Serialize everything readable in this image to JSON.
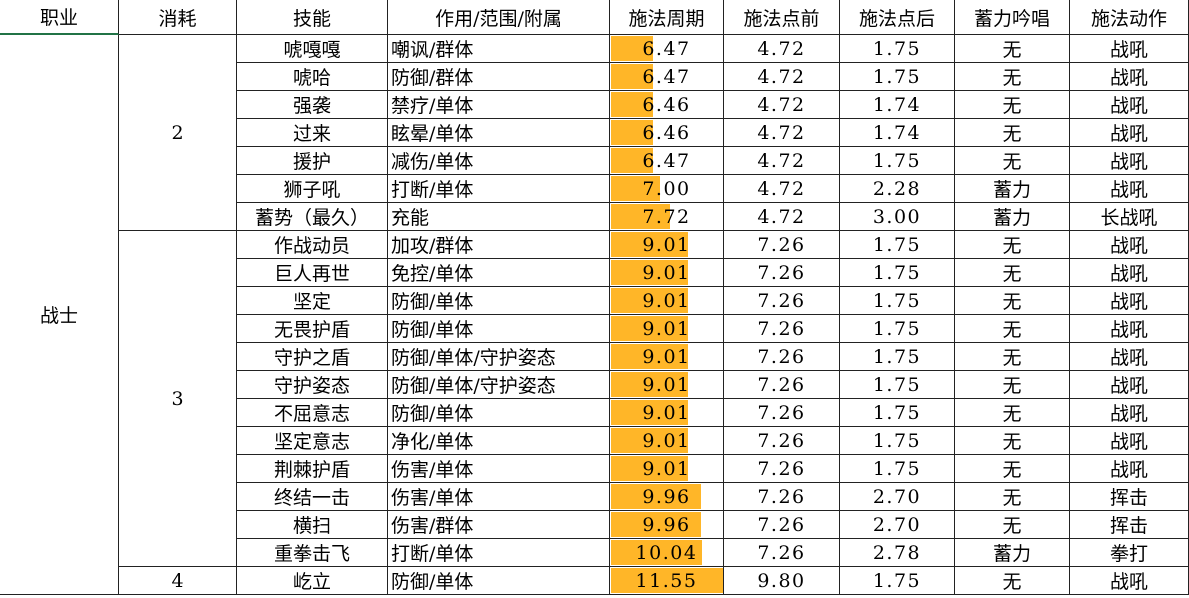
{
  "table": {
    "headers": [
      "职业",
      "消耗",
      "技能",
      "作用/范围/附属",
      "施法周期",
      "施法点前",
      "施法点后",
      "蓄力吟唱",
      "施法动作"
    ],
    "class": "战士",
    "groups": [
      {
        "cost": "2",
        "rows": [
          [
            "唬嘎嘎",
            "嘲讽/群体",
            "6.47",
            "4.72",
            "1.75",
            "无",
            "战吼"
          ],
          [
            "唬哈",
            "防御/群体",
            "6.47",
            "4.72",
            "1.75",
            "无",
            "战吼"
          ],
          [
            "强袭",
            "禁疗/单体",
            "6.46",
            "4.72",
            "1.74",
            "无",
            "战吼"
          ],
          [
            "过来",
            "眩晕/单体",
            "6.46",
            "4.72",
            "1.74",
            "无",
            "战吼"
          ],
          [
            "援护",
            "减伤/单体",
            "6.47",
            "4.72",
            "1.75",
            "无",
            "战吼"
          ],
          [
            "狮子吼",
            "打断/单体",
            "7.00",
            "4.72",
            "2.28",
            "蓄力",
            "战吼"
          ],
          [
            "蓄势（最久）",
            "充能",
            "7.72",
            "4.72",
            "3.00",
            "蓄力",
            "长战吼"
          ]
        ]
      },
      {
        "cost": "3",
        "rows": [
          [
            "作战动员",
            "加攻/群体",
            "9.01",
            "7.26",
            "1.75",
            "无",
            "战吼"
          ],
          [
            "巨人再世",
            "免控/单体",
            "9.01",
            "7.26",
            "1.75",
            "无",
            "战吼"
          ],
          [
            "坚定",
            "防御/单体",
            "9.01",
            "7.26",
            "1.75",
            "无",
            "战吼"
          ],
          [
            "无畏护盾",
            "防御/单体",
            "9.01",
            "7.26",
            "1.75",
            "无",
            "战吼"
          ],
          [
            "守护之盾",
            "防御/单体/守护姿态",
            "9.01",
            "7.26",
            "1.75",
            "无",
            "战吼"
          ],
          [
            "守护姿态",
            "防御/单体/守护姿态",
            "9.01",
            "7.26",
            "1.75",
            "无",
            "战吼"
          ],
          [
            "不屈意志",
            "防御/单体",
            "9.01",
            "7.26",
            "1.75",
            "无",
            "战吼"
          ],
          [
            "坚定意志",
            "净化/单体",
            "9.01",
            "7.26",
            "1.75",
            "无",
            "战吼"
          ],
          [
            "荆棘护盾",
            "伤害/单体",
            "9.01",
            "7.26",
            "1.75",
            "无",
            "战吼"
          ],
          [
            "终结一击",
            "伤害/单体",
            "9.96",
            "7.26",
            "2.70",
            "无",
            "挥击"
          ],
          [
            "横扫",
            "伤害/群体",
            "9.96",
            "7.26",
            "2.70",
            "无",
            "挥击"
          ],
          [
            "重拳击飞",
            "打断/单体",
            "10.04",
            "7.26",
            "2.78",
            "蓄力",
            "拳打"
          ]
        ]
      },
      {
        "cost": "4",
        "rows": [
          [
            "屹立",
            "防御/单体",
            "11.55",
            "9.80",
            "1.75",
            "无",
            "战吼"
          ]
        ]
      }
    ]
  }
}
